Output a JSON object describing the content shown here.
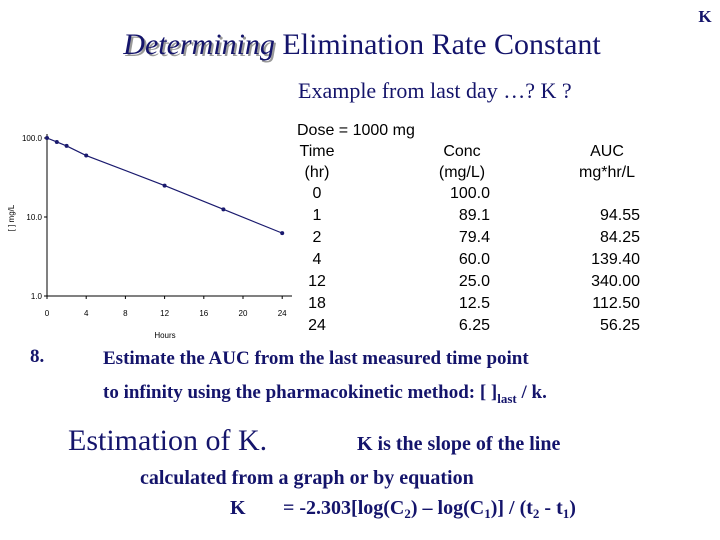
{
  "corner_label": "K",
  "title": {
    "emphasis": "Determining",
    "rest": "Elimination Rate Constant"
  },
  "subtitle": "Example from last day …? K ?",
  "chart_data": {
    "type": "line",
    "x": [
      0,
      1,
      2,
      4,
      12,
      18,
      24
    ],
    "values": [
      100,
      89.1,
      79.4,
      60,
      25,
      12.5,
      6.25
    ],
    "color": "#1a1a6e",
    "xlim": [
      0,
      25
    ],
    "xticks": [
      0,
      4,
      8,
      12,
      16,
      20,
      24
    ],
    "ylim": [
      1,
      100
    ],
    "yticks": [
      {
        "value": 1,
        "label": "1.0"
      },
      {
        "value": 10,
        "label": "10.0"
      },
      {
        "value": 100,
        "label": "100.0"
      }
    ],
    "log_y": true,
    "xlabel": "Hours",
    "ylabel": "[ ] mg/L"
  },
  "table": {
    "dose": "Dose = 1000 mg",
    "headers": [
      [
        "Time",
        "(hr)"
      ],
      [
        "Conc",
        "(mg/L)"
      ],
      [
        "AUC",
        "mg*hr/L"
      ]
    ],
    "rows": [
      [
        "0",
        "100.0"
      ],
      [
        "1",
        "89.1",
        "94.55"
      ],
      [
        "2",
        "79.4",
        "84.25"
      ],
      [
        "4",
        "60.0",
        "139.40"
      ],
      [
        "12",
        "25.0",
        "340.00"
      ],
      [
        "18",
        "12.5",
        "112.50"
      ],
      [
        "24",
        "6.25",
        "56.25"
      ]
    ]
  },
  "item": {
    "number": "8.",
    "line1": "Estimate the AUC from the last measured time point",
    "line2": "to infinity using the pharmacokinetic method: [ ]",
    "line2_sub": "last",
    "line2_end": " / k."
  },
  "estimation": {
    "heading": "Estimation of K.",
    "line1": "K is the slope of the line",
    "line2": "calculated from a graph or by equation",
    "equation": {
      "lhs": "K",
      "parts": [
        "= -2.303[log(C",
        "2",
        ") – log(C",
        "1",
        ")] / (t",
        "2",
        " - t",
        "1",
        ")"
      ]
    }
  }
}
